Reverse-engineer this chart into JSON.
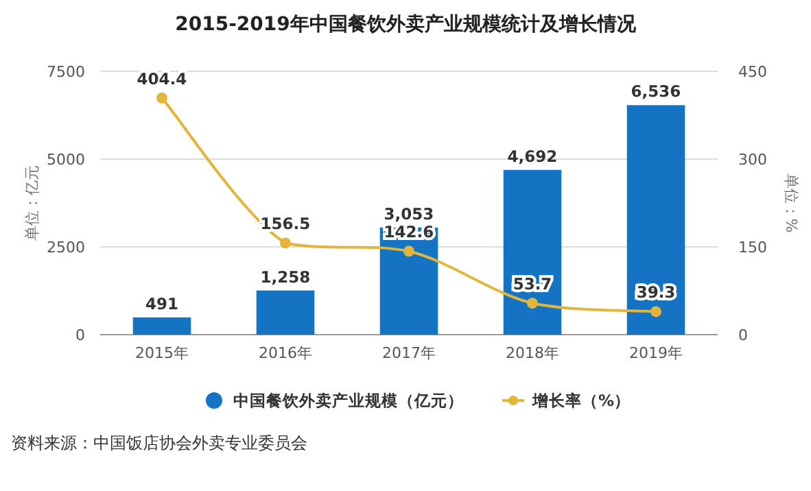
{
  "chart_data": {
    "type": "bar",
    "title": "2015-2019年中国餐饮外卖产业规模统计及增长情况",
    "categories": [
      "2015年",
      "2016年",
      "2017年",
      "2018年",
      "2019年"
    ],
    "series": [
      {
        "name": "中国餐饮外卖产业规模（亿元）",
        "color": "#1473c3",
        "values": [
          491,
          1258,
          3053,
          4692,
          6536
        ],
        "value_labels": [
          "491",
          "1,258",
          "3,053",
          "4,692",
          "6,536"
        ]
      },
      {
        "name": "增长率（%）",
        "type": "line",
        "axis": "y2",
        "color": "#e3b53a",
        "marker": "circle",
        "values": [
          404.4,
          156.5,
          142.6,
          53.7,
          39.3
        ],
        "value_labels": [
          "404.4",
          "156.5",
          "142.6",
          "53.7",
          "39.3"
        ]
      }
    ],
    "ylabel": "单位：亿元",
    "y2label": "单位：%",
    "ylim": [
      0,
      7500
    ],
    "yticks": [
      0,
      2500,
      5000,
      7500
    ],
    "y2lim": [
      0,
      450
    ],
    "y2ticks": [
      0,
      150,
      300,
      450
    ],
    "grid": "y",
    "legend": "bottom",
    "annotations": [
      "资料来源：中国饭店协会外卖专业委员会"
    ]
  }
}
